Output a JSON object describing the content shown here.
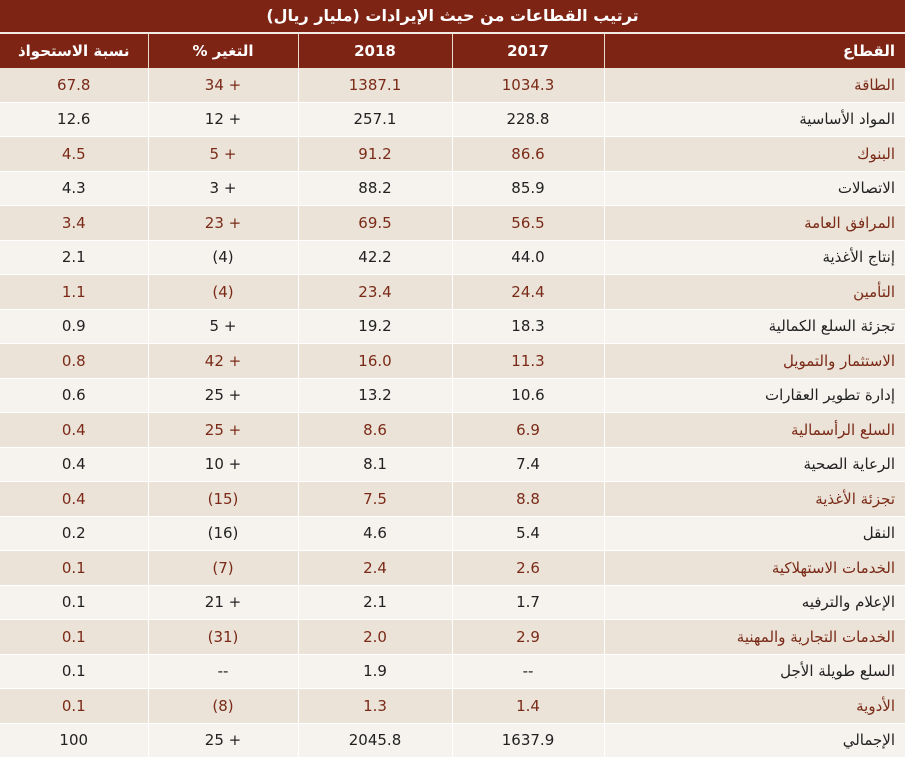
{
  "title": "ترتيب القطاعات من حيث الإيرادات (مليار ريال)",
  "colors": {
    "header_bg": "#7d2414",
    "odd_row_bg": "#ebe3d8",
    "odd_row_text": "#7a2a17",
    "even_row_bg": "#f6f3ef",
    "even_row_text": "#222222"
  },
  "headers": {
    "sector": "القطاع",
    "y2017": "2017",
    "y2018": "2018",
    "change": "التغير %",
    "share": "نسبة الاستحواذ"
  },
  "rows": [
    {
      "sector": "الطاقة",
      "y2017": "1034.3",
      "y2018": "1387.1",
      "change": "34 +",
      "share": "67.8"
    },
    {
      "sector": "المواد الأساسية",
      "y2017": "228.8",
      "y2018": "257.1",
      "change": "12 +",
      "share": "12.6"
    },
    {
      "sector": "البنوك",
      "y2017": "86.6",
      "y2018": "91.2",
      "change": "5 +",
      "share": "4.5"
    },
    {
      "sector": "الاتصالات",
      "y2017": "85.9",
      "y2018": "88.2",
      "change": "3 +",
      "share": "4.3"
    },
    {
      "sector": "المرافق العامة",
      "y2017": "56.5",
      "y2018": "69.5",
      "change": "23 +",
      "share": "3.4"
    },
    {
      "sector": "إنتاج الأغذية",
      "y2017": "44.0",
      "y2018": "42.2",
      "change": "(4)",
      "share": "2.1"
    },
    {
      "sector": "التأمين",
      "y2017": "24.4",
      "y2018": "23.4",
      "change": "(4)",
      "share": "1.1"
    },
    {
      "sector": "تجزئة السلع الكمالية",
      "y2017": "18.3",
      "y2018": "19.2",
      "change": "5 +",
      "share": "0.9"
    },
    {
      "sector": "الاستثمار والتمويل",
      "y2017": "11.3",
      "y2018": "16.0",
      "change": "42 +",
      "share": "0.8"
    },
    {
      "sector": "إدارة تطوير العقارات",
      "y2017": "10.6",
      "y2018": "13.2",
      "change": "25 +",
      "share": "0.6"
    },
    {
      "sector": "السلع الرأسمالية",
      "y2017": "6.9",
      "y2018": "8.6",
      "change": "25 +",
      "share": "0.4"
    },
    {
      "sector": "الرعاية الصحية",
      "y2017": "7.4",
      "y2018": "8.1",
      "change": "10 +",
      "share": "0.4"
    },
    {
      "sector": "تجزئة الأغذية",
      "y2017": "8.8",
      "y2018": "7.5",
      "change": "(15)",
      "share": "0.4"
    },
    {
      "sector": "النقل",
      "y2017": "5.4",
      "y2018": "4.6",
      "change": "(16)",
      "share": "0.2"
    },
    {
      "sector": "الخدمات الاستهلاكية",
      "y2017": "2.6",
      "y2018": "2.4",
      "change": "(7)",
      "share": "0.1"
    },
    {
      "sector": "الإعلام والترفيه",
      "y2017": "1.7",
      "y2018": "2.1",
      "change": "21 +",
      "share": "0.1"
    },
    {
      "sector": "الخدمات التجارية والمهنية",
      "y2017": "2.9",
      "y2018": "2.0",
      "change": "(31)",
      "share": "0.1"
    },
    {
      "sector": "السلع طويلة الأجل",
      "y2017": "--",
      "y2018": "1.9",
      "change": "--",
      "share": "0.1"
    },
    {
      "sector": "الأدوية",
      "y2017": "1.4",
      "y2018": "1.3",
      "change": "(8)",
      "share": "0.1"
    },
    {
      "sector": "الإجمالي",
      "y2017": "1637.9",
      "y2018": "2045.8",
      "change": "25 +",
      "share": "100"
    }
  ]
}
